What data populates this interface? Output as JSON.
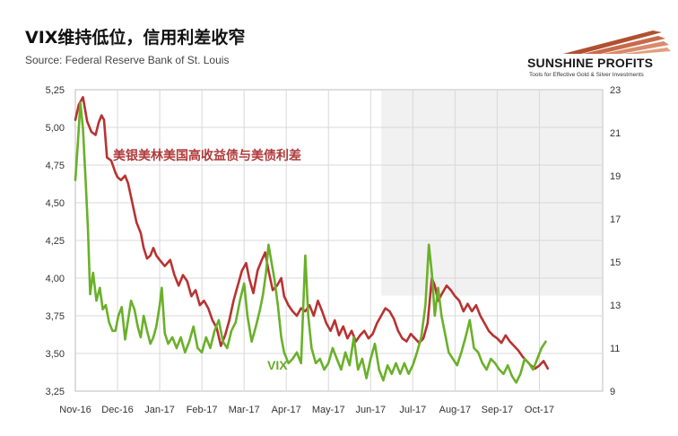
{
  "header": {
    "title": "VIX维持低位，信用利差收窄",
    "subtitle": "Source: Federal Reserve Bank of St. Louis"
  },
  "logo": {
    "name": "SUNSHINE PROFITS",
    "tagline": "Tools for Effective Gold & Silver Investments"
  },
  "colors": {
    "spread": "#b83232",
    "vix": "#6ab02a",
    "grid": "#d8d8d8"
  },
  "chart_data": {
    "type": "line",
    "title": "VIX维持低位，信用利差收窄",
    "subtitle": "Source: Federal Reserve Bank of St. Louis",
    "x_tick_labels": [
      "Nov-16",
      "Dec-16",
      "Jan-17",
      "Feb-17",
      "Mar-17",
      "Apr-17",
      "May-17",
      "Jun-17",
      "Jul-17",
      "Aug-17",
      "Sep-17",
      "Oct-17"
    ],
    "x_range_months": [
      0,
      12.5
    ],
    "y_left": {
      "range": [
        3.25,
        5.25
      ],
      "ticks": [
        "3,25",
        "3,50",
        "3,75",
        "4,00",
        "4,25",
        "4,50",
        "4,75",
        "5,00",
        "5,25"
      ]
    },
    "y_right": {
      "range": [
        9,
        23
      ],
      "ticks": [
        "9",
        "11",
        "13",
        "15",
        "17",
        "19",
        "21",
        "23"
      ]
    },
    "grid": true,
    "series": [
      {
        "name": "美银美林美国高收益债与美债利差",
        "axis": "left",
        "points": [
          [
            0.0,
            5.05
          ],
          [
            0.08,
            5.15
          ],
          [
            0.18,
            5.2
          ],
          [
            0.28,
            5.04
          ],
          [
            0.38,
            4.97
          ],
          [
            0.48,
            4.95
          ],
          [
            0.55,
            5.03
          ],
          [
            0.62,
            5.08
          ],
          [
            0.68,
            5.05
          ],
          [
            0.75,
            4.8
          ],
          [
            0.85,
            4.78
          ],
          [
            0.95,
            4.7
          ],
          [
            1.0,
            4.67
          ],
          [
            1.08,
            4.65
          ],
          [
            1.18,
            4.68
          ],
          [
            1.25,
            4.63
          ],
          [
            1.35,
            4.5
          ],
          [
            1.45,
            4.37
          ],
          [
            1.55,
            4.3
          ],
          [
            1.62,
            4.2
          ],
          [
            1.7,
            4.13
          ],
          [
            1.78,
            4.15
          ],
          [
            1.85,
            4.2
          ],
          [
            1.92,
            4.15
          ],
          [
            2.0,
            4.12
          ],
          [
            2.12,
            4.08
          ],
          [
            2.25,
            4.12
          ],
          [
            2.35,
            4.02
          ],
          [
            2.45,
            3.95
          ],
          [
            2.55,
            4.02
          ],
          [
            2.65,
            3.98
          ],
          [
            2.75,
            3.88
          ],
          [
            2.85,
            3.92
          ],
          [
            2.95,
            3.82
          ],
          [
            3.05,
            3.85
          ],
          [
            3.15,
            3.8
          ],
          [
            3.25,
            3.72
          ],
          [
            3.35,
            3.67
          ],
          [
            3.45,
            3.55
          ],
          [
            3.55,
            3.62
          ],
          [
            3.65,
            3.72
          ],
          [
            3.75,
            3.85
          ],
          [
            3.85,
            3.95
          ],
          [
            3.95,
            4.05
          ],
          [
            4.05,
            4.1
          ],
          [
            4.12,
            4.0
          ],
          [
            4.22,
            3.9
          ],
          [
            4.32,
            4.05
          ],
          [
            4.42,
            4.12
          ],
          [
            4.5,
            4.17
          ],
          [
            4.58,
            4.05
          ],
          [
            4.68,
            3.92
          ],
          [
            4.78,
            3.95
          ],
          [
            4.88,
            4.0
          ],
          [
            4.95,
            3.88
          ],
          [
            5.05,
            3.82
          ],
          [
            5.15,
            3.78
          ],
          [
            5.25,
            3.75
          ],
          [
            5.35,
            3.8
          ],
          [
            5.45,
            3.78
          ],
          [
            5.55,
            3.82
          ],
          [
            5.65,
            3.75
          ],
          [
            5.75,
            3.85
          ],
          [
            5.85,
            3.78
          ],
          [
            5.95,
            3.7
          ],
          [
            6.05,
            3.65
          ],
          [
            6.15,
            3.72
          ],
          [
            6.25,
            3.62
          ],
          [
            6.35,
            3.68
          ],
          [
            6.45,
            3.6
          ],
          [
            6.55,
            3.65
          ],
          [
            6.65,
            3.58
          ],
          [
            6.75,
            3.62
          ],
          [
            6.85,
            3.65
          ],
          [
            6.95,
            3.6
          ],
          [
            7.05,
            3.63
          ],
          [
            7.15,
            3.7
          ],
          [
            7.25,
            3.75
          ],
          [
            7.35,
            3.8
          ],
          [
            7.45,
            3.78
          ],
          [
            7.55,
            3.73
          ],
          [
            7.65,
            3.65
          ],
          [
            7.75,
            3.6
          ],
          [
            7.85,
            3.58
          ],
          [
            7.95,
            3.63
          ],
          [
            8.05,
            3.6
          ],
          [
            8.15,
            3.57
          ],
          [
            8.25,
            3.6
          ],
          [
            8.35,
            3.7
          ],
          [
            8.45,
            4.0
          ],
          [
            8.52,
            3.95
          ],
          [
            8.6,
            3.85
          ],
          [
            8.7,
            3.9
          ],
          [
            8.8,
            3.95
          ],
          [
            8.9,
            3.92
          ],
          [
            9.0,
            3.88
          ],
          [
            9.1,
            3.85
          ],
          [
            9.2,
            3.78
          ],
          [
            9.3,
            3.83
          ],
          [
            9.4,
            3.78
          ],
          [
            9.5,
            3.82
          ],
          [
            9.6,
            3.75
          ],
          [
            9.7,
            3.7
          ],
          [
            9.8,
            3.65
          ],
          [
            9.9,
            3.62
          ],
          [
            10.0,
            3.6
          ],
          [
            10.1,
            3.57
          ],
          [
            10.2,
            3.62
          ],
          [
            10.3,
            3.58
          ],
          [
            10.4,
            3.55
          ],
          [
            10.5,
            3.52
          ],
          [
            10.6,
            3.48
          ],
          [
            10.7,
            3.45
          ],
          [
            10.8,
            3.42
          ],
          [
            10.9,
            3.4
          ],
          [
            11.0,
            3.42
          ],
          [
            11.1,
            3.45
          ],
          [
            11.2,
            3.4
          ]
        ]
      },
      {
        "name": "VIX",
        "axis": "right",
        "points": [
          [
            0.0,
            18.8
          ],
          [
            0.06,
            20.5
          ],
          [
            0.12,
            22.4
          ],
          [
            0.18,
            21.2
          ],
          [
            0.25,
            18.5
          ],
          [
            0.3,
            16.5
          ],
          [
            0.35,
            13.5
          ],
          [
            0.42,
            14.5
          ],
          [
            0.5,
            13.2
          ],
          [
            0.58,
            13.8
          ],
          [
            0.65,
            12.8
          ],
          [
            0.72,
            13.0
          ],
          [
            0.8,
            12.2
          ],
          [
            0.88,
            11.8
          ],
          [
            0.95,
            11.8
          ],
          [
            1.02,
            12.5
          ],
          [
            1.1,
            12.9
          ],
          [
            1.18,
            11.4
          ],
          [
            1.25,
            12.3
          ],
          [
            1.32,
            13.2
          ],
          [
            1.4,
            12.8
          ],
          [
            1.48,
            12.0
          ],
          [
            1.55,
            11.5
          ],
          [
            1.62,
            12.5
          ],
          [
            1.7,
            11.8
          ],
          [
            1.78,
            11.2
          ],
          [
            1.85,
            11.5
          ],
          [
            1.92,
            12.0
          ],
          [
            2.0,
            13.0
          ],
          [
            2.05,
            13.8
          ],
          [
            2.12,
            11.7
          ],
          [
            2.2,
            11.2
          ],
          [
            2.3,
            11.5
          ],
          [
            2.4,
            11.0
          ],
          [
            2.5,
            11.5
          ],
          [
            2.6,
            10.8
          ],
          [
            2.7,
            11.3
          ],
          [
            2.8,
            12.0
          ],
          [
            2.9,
            11.0
          ],
          [
            3.0,
            10.8
          ],
          [
            3.1,
            11.5
          ],
          [
            3.2,
            11.0
          ],
          [
            3.3,
            11.8
          ],
          [
            3.4,
            12.3
          ],
          [
            3.5,
            11.3
          ],
          [
            3.6,
            11.0
          ],
          [
            3.7,
            11.8
          ],
          [
            3.8,
            12.2
          ],
          [
            3.9,
            13.2
          ],
          [
            4.0,
            14.0
          ],
          [
            4.08,
            12.5
          ],
          [
            4.18,
            11.3
          ],
          [
            4.28,
            12.0
          ],
          [
            4.38,
            12.8
          ],
          [
            4.45,
            13.5
          ],
          [
            4.52,
            14.5
          ],
          [
            4.58,
            15.8
          ],
          [
            4.65,
            15.0
          ],
          [
            4.72,
            14.2
          ],
          [
            4.8,
            13.0
          ],
          [
            4.88,
            11.5
          ],
          [
            4.95,
            10.8
          ],
          [
            5.05,
            10.3
          ],
          [
            5.15,
            10.5
          ],
          [
            5.25,
            10.8
          ],
          [
            5.35,
            10.3
          ],
          [
            5.45,
            15.3
          ],
          [
            5.52,
            12.5
          ],
          [
            5.6,
            11.0
          ],
          [
            5.7,
            10.3
          ],
          [
            5.8,
            10.5
          ],
          [
            5.9,
            10.0
          ],
          [
            6.0,
            10.3
          ],
          [
            6.1,
            11.0
          ],
          [
            6.2,
            10.5
          ],
          [
            6.3,
            10.0
          ],
          [
            6.4,
            10.8
          ],
          [
            6.5,
            10.2
          ],
          [
            6.6,
            11.5
          ],
          [
            6.7,
            10.0
          ],
          [
            6.8,
            10.5
          ],
          [
            6.9,
            9.6
          ],
          [
            7.0,
            10.5
          ],
          [
            7.1,
            11.2
          ],
          [
            7.2,
            10.0
          ],
          [
            7.3,
            9.5
          ],
          [
            7.4,
            10.2
          ],
          [
            7.5,
            9.8
          ],
          [
            7.6,
            10.3
          ],
          [
            7.7,
            9.8
          ],
          [
            7.8,
            10.3
          ],
          [
            7.9,
            9.8
          ],
          [
            8.0,
            10.2
          ],
          [
            8.1,
            10.8
          ],
          [
            8.2,
            11.5
          ],
          [
            8.3,
            13.0
          ],
          [
            8.38,
            15.8
          ],
          [
            8.45,
            14.5
          ],
          [
            8.52,
            12.5
          ],
          [
            8.6,
            13.8
          ],
          [
            8.68,
            12.5
          ],
          [
            8.75,
            11.8
          ],
          [
            8.85,
            10.8
          ],
          [
            8.95,
            10.5
          ],
          [
            9.05,
            10.2
          ],
          [
            9.15,
            10.8
          ],
          [
            9.25,
            11.5
          ],
          [
            9.35,
            12.3
          ],
          [
            9.45,
            11.0
          ],
          [
            9.55,
            10.8
          ],
          [
            9.65,
            10.3
          ],
          [
            9.75,
            10.0
          ],
          [
            9.85,
            10.5
          ],
          [
            9.95,
            10.3
          ],
          [
            10.05,
            10.0
          ],
          [
            10.15,
            9.8
          ],
          [
            10.25,
            10.2
          ],
          [
            10.35,
            9.7
          ],
          [
            10.45,
            9.4
          ],
          [
            10.55,
            9.8
          ],
          [
            10.65,
            10.5
          ],
          [
            10.75,
            10.3
          ],
          [
            10.85,
            10.0
          ],
          [
            10.95,
            10.5
          ],
          [
            11.05,
            11.0
          ],
          [
            11.15,
            11.3
          ]
        ]
      }
    ]
  }
}
